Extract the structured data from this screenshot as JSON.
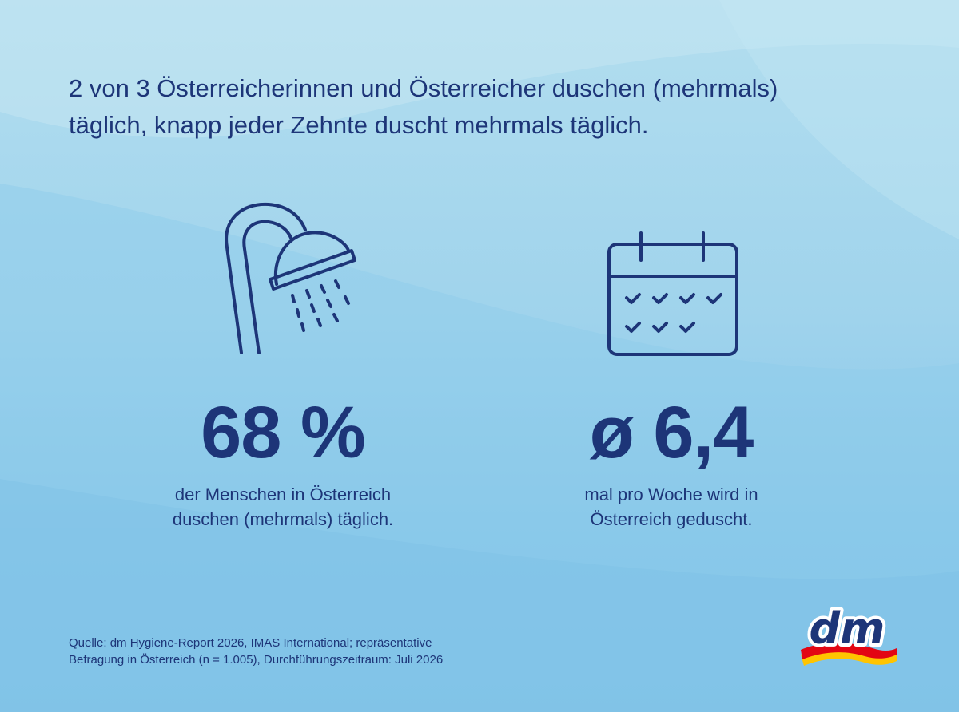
{
  "headline": {
    "line1": "2 von 3 Österreicherinnen und Österreicher duschen (mehrmals)",
    "line2": "täglich, knapp jeder Zehnte duscht mehrmals täglich."
  },
  "stats": [
    {
      "icon": "shower-icon",
      "value": "68 %",
      "description": [
        "der Menschen in Österreich",
        "duschen (mehrmals) täglich."
      ]
    },
    {
      "icon": "calendar-icon",
      "value": "ø 6,4",
      "description": [
        "mal pro Woche wird in",
        "Österreich geduscht."
      ]
    }
  ],
  "source": {
    "line1": "Quelle: dm Hygiene-Report 2026, IMAS International; repräsentative",
    "line2": "Befragung in Österreich (n = 1.005), Durchführungszeitraum: Juli 2026"
  },
  "logo": {
    "text": "dm",
    "colors": {
      "text": "#1d3578",
      "red": "#e30613",
      "yellow": "#ffc400"
    }
  },
  "colors": {
    "accent": "#1d3578",
    "background": "#9fd3ec"
  }
}
